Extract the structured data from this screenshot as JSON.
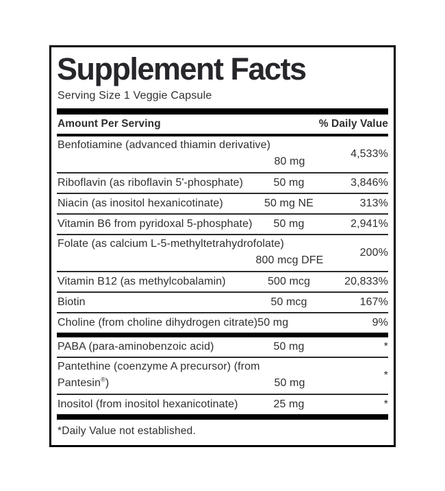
{
  "panel": {
    "title": "Supplement Facts",
    "serving_size": "Serving Size 1 Veggie Capsule",
    "header": {
      "amount_label": "Amount Per Serving",
      "dv_label": "% Daily Value"
    },
    "rows": [
      {
        "name": "Benfotiamine (advanced thiamin derivative)",
        "name2": "",
        "amount": "80 mg",
        "dv": "4,533%"
      },
      {
        "name": "Riboflavin (as riboflavin 5'-phosphate)",
        "amount": "50 mg",
        "dv": "3,846%"
      },
      {
        "name": "Niacin (as inositol hexanicotinate)",
        "amount": "50 mg NE",
        "dv": "313%"
      },
      {
        "name": "Vitamin B6 from pyridoxal 5-phosphate)",
        "amount": "50 mg",
        "dv": "2,941%"
      },
      {
        "name": "Folate (as calcium L-5-methyltetrahydrofolate)",
        "name2": "",
        "amount": "800 mcg DFE",
        "dv": "200%"
      },
      {
        "name": "Vitamin B12 (as methylcobalamin)",
        "amount": "500 mcg",
        "dv": "20,833%"
      },
      {
        "name": "Biotin",
        "amount": "50 mcg",
        "dv": "167%"
      },
      {
        "name": "Choline (from choline dihydrogen citrate)",
        "amount": "50 mg",
        "dv": "9%"
      },
      {
        "name": "PABA (para-aminobenzoic acid)",
        "amount": "50 mg",
        "dv": "*"
      },
      {
        "name": "Pantethine (coenzyme A precursor) (from",
        "name2": "Pantesin",
        "name2_reg": "®",
        "name2_close": ")",
        "amount": "50 mg",
        "dv": "*"
      },
      {
        "name": "Inositol (from inositol hexanicotinate)",
        "amount": "25 mg",
        "dv": "*"
      }
    ],
    "footnote": "*Daily Value not established.",
    "colors": {
      "border": "#000000",
      "text": "#2f2f2f",
      "title": "#26262b"
    }
  }
}
